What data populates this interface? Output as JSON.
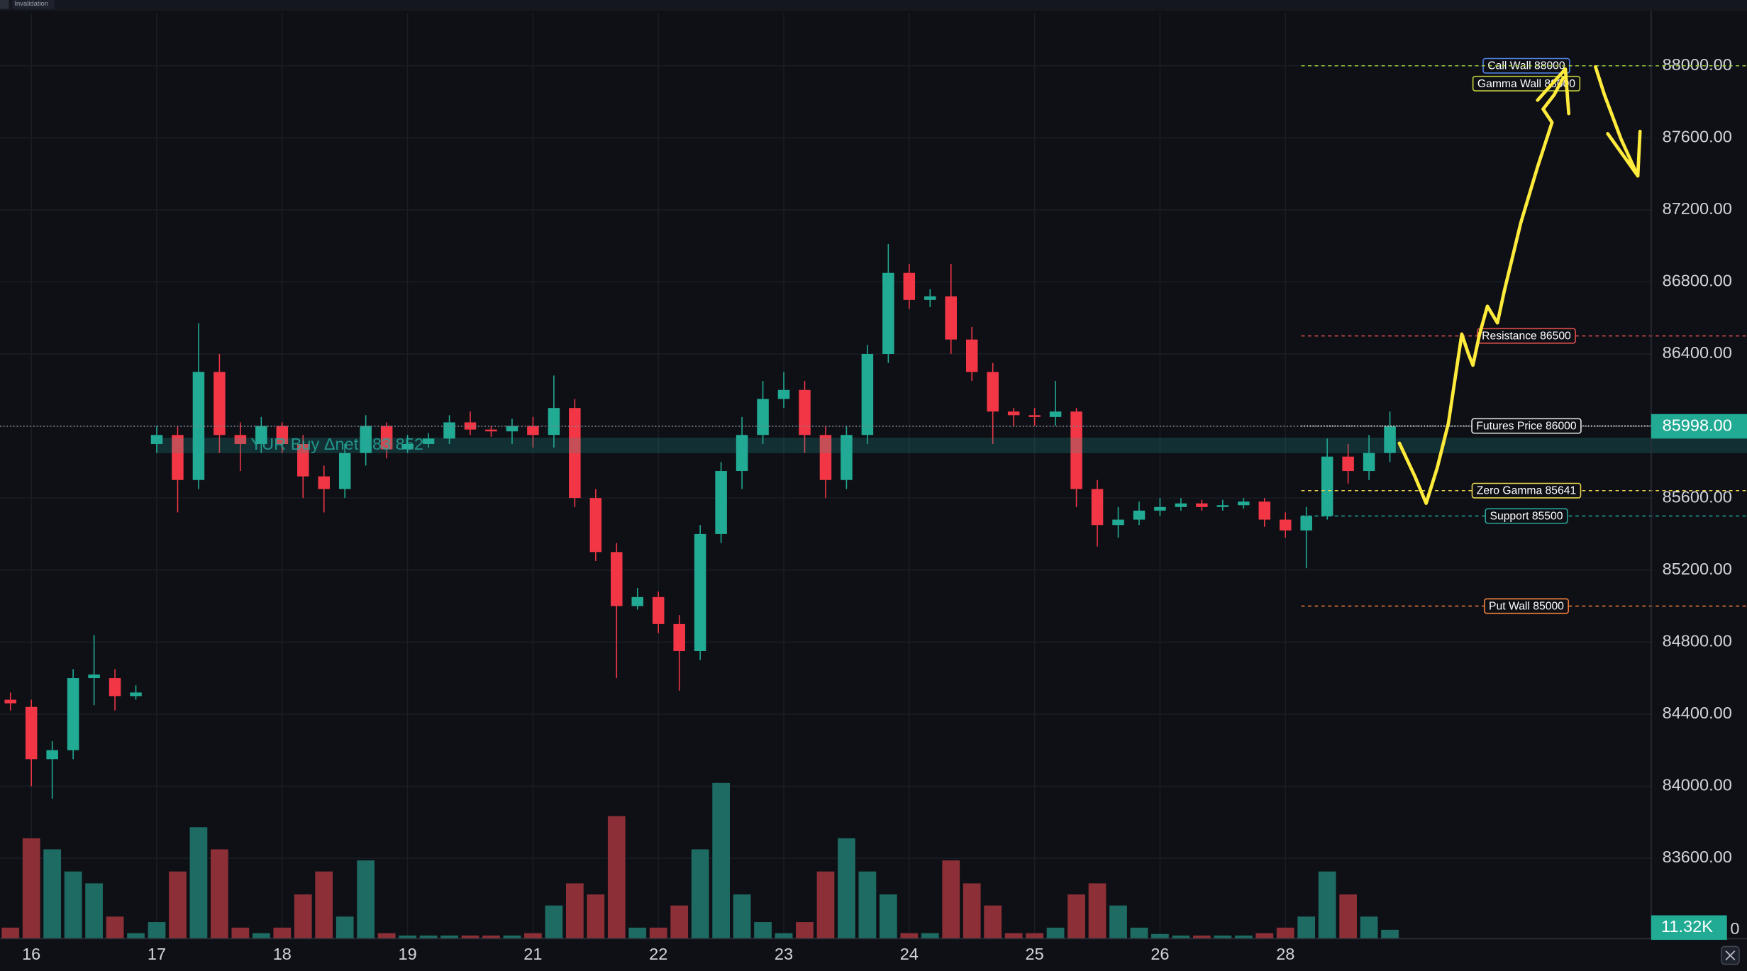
{
  "chart_data": {
    "type": "candlestick",
    "top_tags": [
      "Invalidation"
    ],
    "categories": [
      null,
      "16",
      null,
      null,
      null,
      null,
      null,
      "17",
      null,
      null,
      null,
      null,
      null,
      "18",
      null,
      null,
      null,
      null,
      null,
      "19",
      null,
      null,
      null,
      null,
      null,
      "21",
      null,
      null,
      null,
      null,
      null,
      "22",
      null,
      null,
      null,
      null,
      null,
      "23",
      null,
      null,
      null,
      null,
      null,
      "24",
      null,
      null,
      null,
      null,
      null,
      "25",
      null,
      null,
      null,
      null,
      null,
      "26",
      null,
      null,
      null,
      null,
      null,
      "28",
      null,
      null,
      null,
      null,
      null,
      null,
      null,
      null,
      null,
      null,
      null,
      null,
      null,
      null,
      null,
      null,
      null
    ],
    "open": [
      84480,
      84440,
      84150,
      84200,
      84600,
      84600,
      84500,
      85900,
      85950,
      85700,
      86300,
      85950,
      85900,
      86000,
      85900,
      85720,
      85650,
      85850,
      86000,
      85870,
      85900,
      85930,
      86020,
      85980,
      85970,
      86000,
      85950,
      86100,
      85600,
      85300,
      85000,
      85050,
      84900,
      84750,
      85400,
      85750,
      85950,
      86150,
      86200,
      85950,
      85700,
      85950,
      86400,
      86850,
      86700,
      86720,
      86480,
      86300,
      86080,
      86060,
      86050,
      86080,
      85650,
      85450,
      85480,
      85530,
      85550,
      85570,
      85550,
      85560,
      85580,
      85480,
      85420,
      85500,
      85830,
      85750,
      85850,
      null,
      null,
      null,
      null,
      null,
      null,
      null,
      null,
      null,
      null,
      null,
      null
    ],
    "high": [
      84520,
      84480,
      84250,
      84650,
      84840,
      84650,
      84560,
      86000,
      86000,
      86570,
      86400,
      86020,
      86050,
      86020,
      85950,
      85780,
      85900,
      86060,
      86020,
      85950,
      85960,
      86060,
      86080,
      86000,
      86040,
      86050,
      86280,
      86150,
      85650,
      85350,
      85100,
      85080,
      84950,
      85450,
      85800,
      86050,
      86250,
      86300,
      86250,
      86000,
      86000,
      86450,
      87010,
      86900,
      86760,
      86900,
      86550,
      86350,
      86100,
      86100,
      86250,
      86100,
      85700,
      85550,
      85580,
      85600,
      85600,
      85590,
      85590,
      85600,
      85600,
      85520,
      85550,
      85930,
      85900,
      85950,
      86080,
      null,
      null,
      null,
      null,
      null,
      null,
      null,
      null,
      null,
      null,
      null,
      null
    ],
    "low": [
      84420,
      84000,
      83930,
      84150,
      84450,
      84420,
      84480,
      85850,
      85520,
      85650,
      85850,
      85750,
      85850,
      85850,
      85600,
      85520,
      85600,
      85780,
      85820,
      85850,
      85880,
      85900,
      85950,
      85940,
      85900,
      85880,
      85880,
      85550,
      85250,
      84600,
      84980,
      84850,
      84530,
      84700,
      85350,
      85650,
      85900,
      86100,
      85850,
      85600,
      85650,
      85900,
      86350,
      86650,
      86660,
      86400,
      86250,
      85900,
      86000,
      86000,
      86000,
      85550,
      85330,
      85380,
      85450,
      85500,
      85530,
      85530,
      85530,
      85540,
      85440,
      85380,
      85210,
      85480,
      85680,
      85700,
      85800,
      null,
      null,
      null,
      null,
      null,
      null,
      null,
      null,
      null,
      null,
      null,
      null
    ],
    "close": [
      84460,
      84150,
      84200,
      84600,
      84620,
      84500,
      84520,
      85950,
      85700,
      86300,
      85950,
      85900,
      86000,
      85900,
      85720,
      85650,
      85850,
      86000,
      85870,
      85900,
      85930,
      86020,
      85980,
      85970,
      86000,
      85950,
      86100,
      85600,
      85300,
      85000,
      85050,
      84900,
      84750,
      85400,
      85750,
      85950,
      86150,
      86200,
      85950,
      85700,
      85950,
      86400,
      86850,
      86700,
      86720,
      86480,
      86300,
      86080,
      86060,
      86050,
      86080,
      85650,
      85450,
      85480,
      85530,
      85550,
      85570,
      85550,
      85560,
      85580,
      85480,
      85420,
      85500,
      85830,
      85750,
      85850,
      85998,
      null,
      null,
      null,
      null,
      null,
      null,
      null,
      null,
      null,
      null,
      null,
      null
    ],
    "volume": [
      14,
      127,
      113,
      85,
      70,
      28,
      7,
      21,
      85,
      141,
      113,
      14,
      7,
      14,
      56,
      85,
      28,
      99,
      7,
      4,
      4,
      4,
      4,
      4,
      4,
      7,
      42,
      70,
      56,
      155,
      14,
      14,
      42,
      113,
      197,
      56,
      21,
      7,
      21,
      85,
      127,
      85,
      56,
      7,
      7,
      99,
      70,
      42,
      7,
      7,
      14,
      56,
      70,
      42,
      14,
      6,
      4,
      4,
      4,
      4,
      7,
      14,
      28,
      85,
      56,
      28,
      11.32,
      null,
      null,
      null,
      null,
      null,
      null,
      null,
      null,
      null,
      null,
      null,
      null
    ],
    "volume_value_label": "11.32K",
    "up_color": "#22ab94",
    "down_color": "#f23645",
    "volume_up_color": "#1d6b62",
    "volume_down_color": "#8c2f36",
    "ylim": [
      83153,
      88291
    ],
    "yticks": [
      {
        "value": 83600,
        "label": "83600.00"
      },
      {
        "value": 84000,
        "label": "84000.00"
      },
      {
        "value": 84400,
        "label": "84400.00"
      },
      {
        "value": 84800,
        "label": "84800.00"
      },
      {
        "value": 85200,
        "label": "85200.00"
      },
      {
        "value": 85600,
        "label": "85600.00"
      },
      {
        "value": 86000,
        "label": "86000.00"
      },
      {
        "value": 86400,
        "label": "86400.00"
      },
      {
        "value": 86800,
        "label": "86800.00"
      },
      {
        "value": 87200,
        "label": "87200.00"
      },
      {
        "value": 87600,
        "label": "87600.00"
      },
      {
        "value": 88000,
        "label": "88000.00"
      }
    ],
    "y2lim": [
      0,
      1170
    ],
    "y2ticks": [
      0
    ],
    "grid": true,
    "last_price": {
      "value": 85998,
      "label": "85998.00"
    },
    "zone": {
      "label": "YUR Buy Δnet 183 852",
      "from": 85849,
      "to": 85935,
      "color": "#26a69a"
    },
    "levels": [
      {
        "label": "Call Wall 88000",
        "value": 88000,
        "color": "#9ccc3c",
        "box_color": "#4f7fe0"
      },
      {
        "label": "Gamma Wall 88000",
        "value": 88000,
        "color": "#9ccc3c",
        "box_color": "#c6d23c"
      },
      {
        "label": "Resistance 86500",
        "value": 86500,
        "color": "#e0504a",
        "box_color": "#e0504a"
      },
      {
        "label": "Futures Price 86000",
        "value": 86000,
        "color": "#e8e8e8",
        "box_color": "#e8e8e8"
      },
      {
        "label": "Zero Gamma 85641",
        "value": 85641,
        "color": "#e8d44d",
        "box_color": "#e8d44d"
      },
      {
        "label": "Support 85500",
        "value": 85500,
        "color": "#26a69a",
        "box_color": "#26a69a"
      },
      {
        "label": "Put Wall 85000",
        "value": 85000,
        "color": "#f5813c",
        "box_color": "#f5813c"
      }
    ]
  }
}
